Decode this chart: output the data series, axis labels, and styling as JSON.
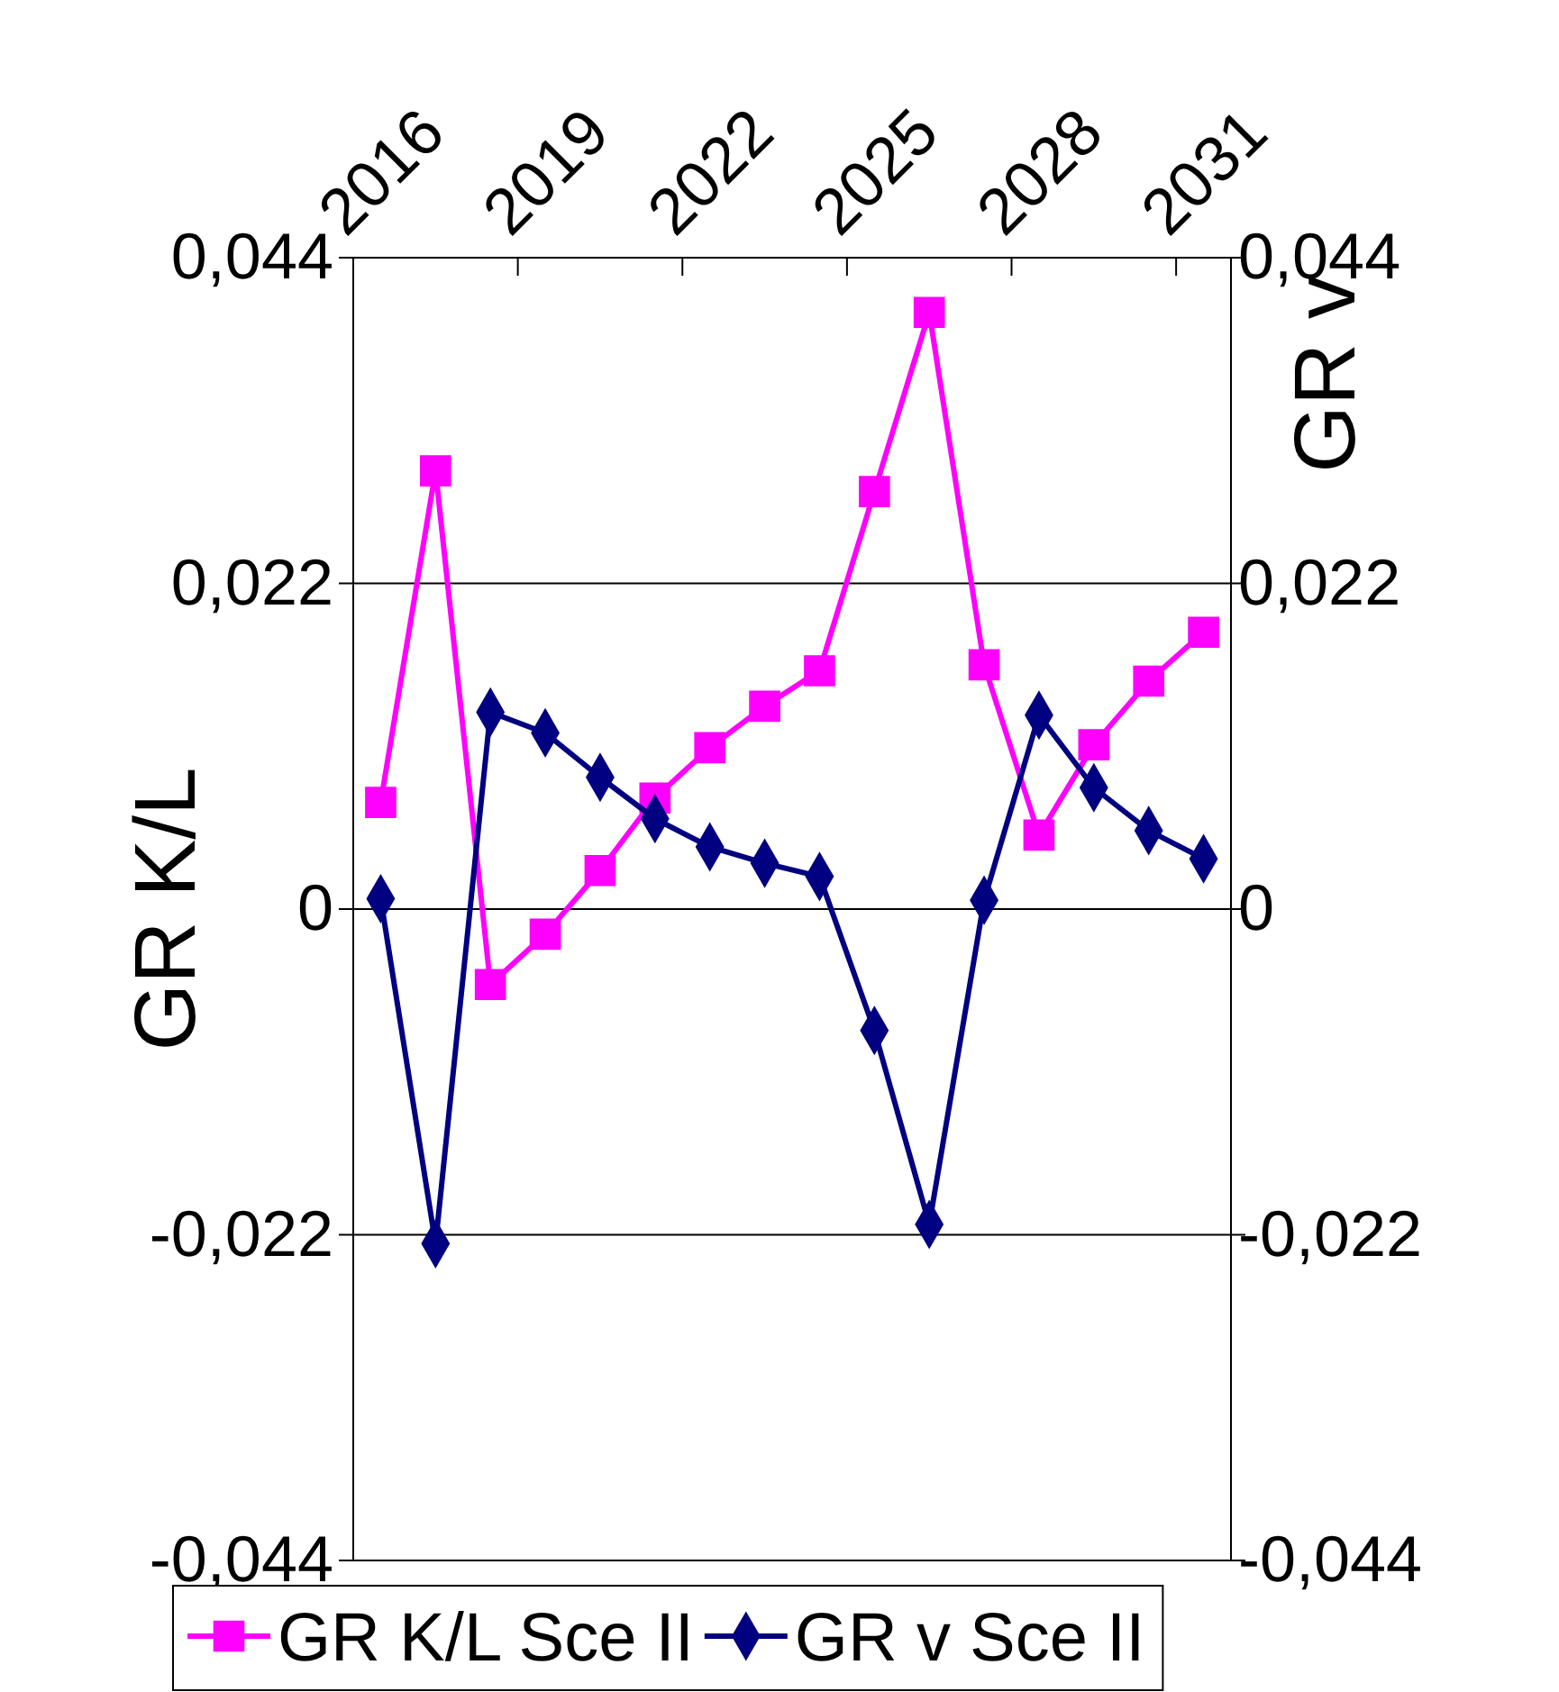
{
  "chart_data": {
    "type": "line",
    "xlabel": null,
    "ylabel": "GR K/L",
    "y2label": "GR v",
    "categories": [
      "2016",
      null,
      null,
      "2019",
      null,
      null,
      "2022",
      null,
      null,
      "2025",
      null,
      null,
      "2028",
      null,
      null,
      "2031"
    ],
    "series": [
      {
        "name": "GR K/L Sce II",
        "color": "#ff00ff",
        "marker": "square",
        "values": [
          0.0072,
          0.0296,
          -0.0051,
          -0.0017,
          0.0026,
          0.0075,
          0.0109,
          0.0137,
          0.0161,
          0.0282,
          0.0403,
          0.0165,
          0.005,
          0.0111,
          0.0154,
          0.0187
        ]
      },
      {
        "name": "GR v Sce II",
        "color": "#000080",
        "marker": "diamond",
        "values": [
          0.0007,
          -0.0226,
          0.0133,
          0.0119,
          0.0089,
          0.0061,
          0.0042,
          0.0031,
          0.0022,
          -0.0082,
          -0.0213,
          0.0006,
          0.0131,
          0.0082,
          0.0053,
          0.0034
        ]
      }
    ],
    "ylim": [
      -0.044,
      0.044
    ],
    "yticks": [
      {
        "value": -0.044,
        "label": "-0,044"
      },
      {
        "value": -0.022,
        "label": "-0,022"
      },
      {
        "value": 0,
        "label": "0"
      },
      {
        "value": 0.022,
        "label": "0,022"
      },
      {
        "value": 0.044,
        "label": "0,044"
      }
    ],
    "y2lim": [
      -0.044,
      0.044
    ],
    "y2ticks": [
      {
        "value": -0.044,
        "label": "-0,044"
      },
      {
        "value": -0.022,
        "label": "-0,022"
      },
      {
        "value": 0,
        "label": "0"
      },
      {
        "value": 0.022,
        "label": "0,022"
      },
      {
        "value": 0.044,
        "label": "0,044"
      }
    ],
    "grid": "y",
    "legend": "bottom",
    "line_style": "solid"
  }
}
